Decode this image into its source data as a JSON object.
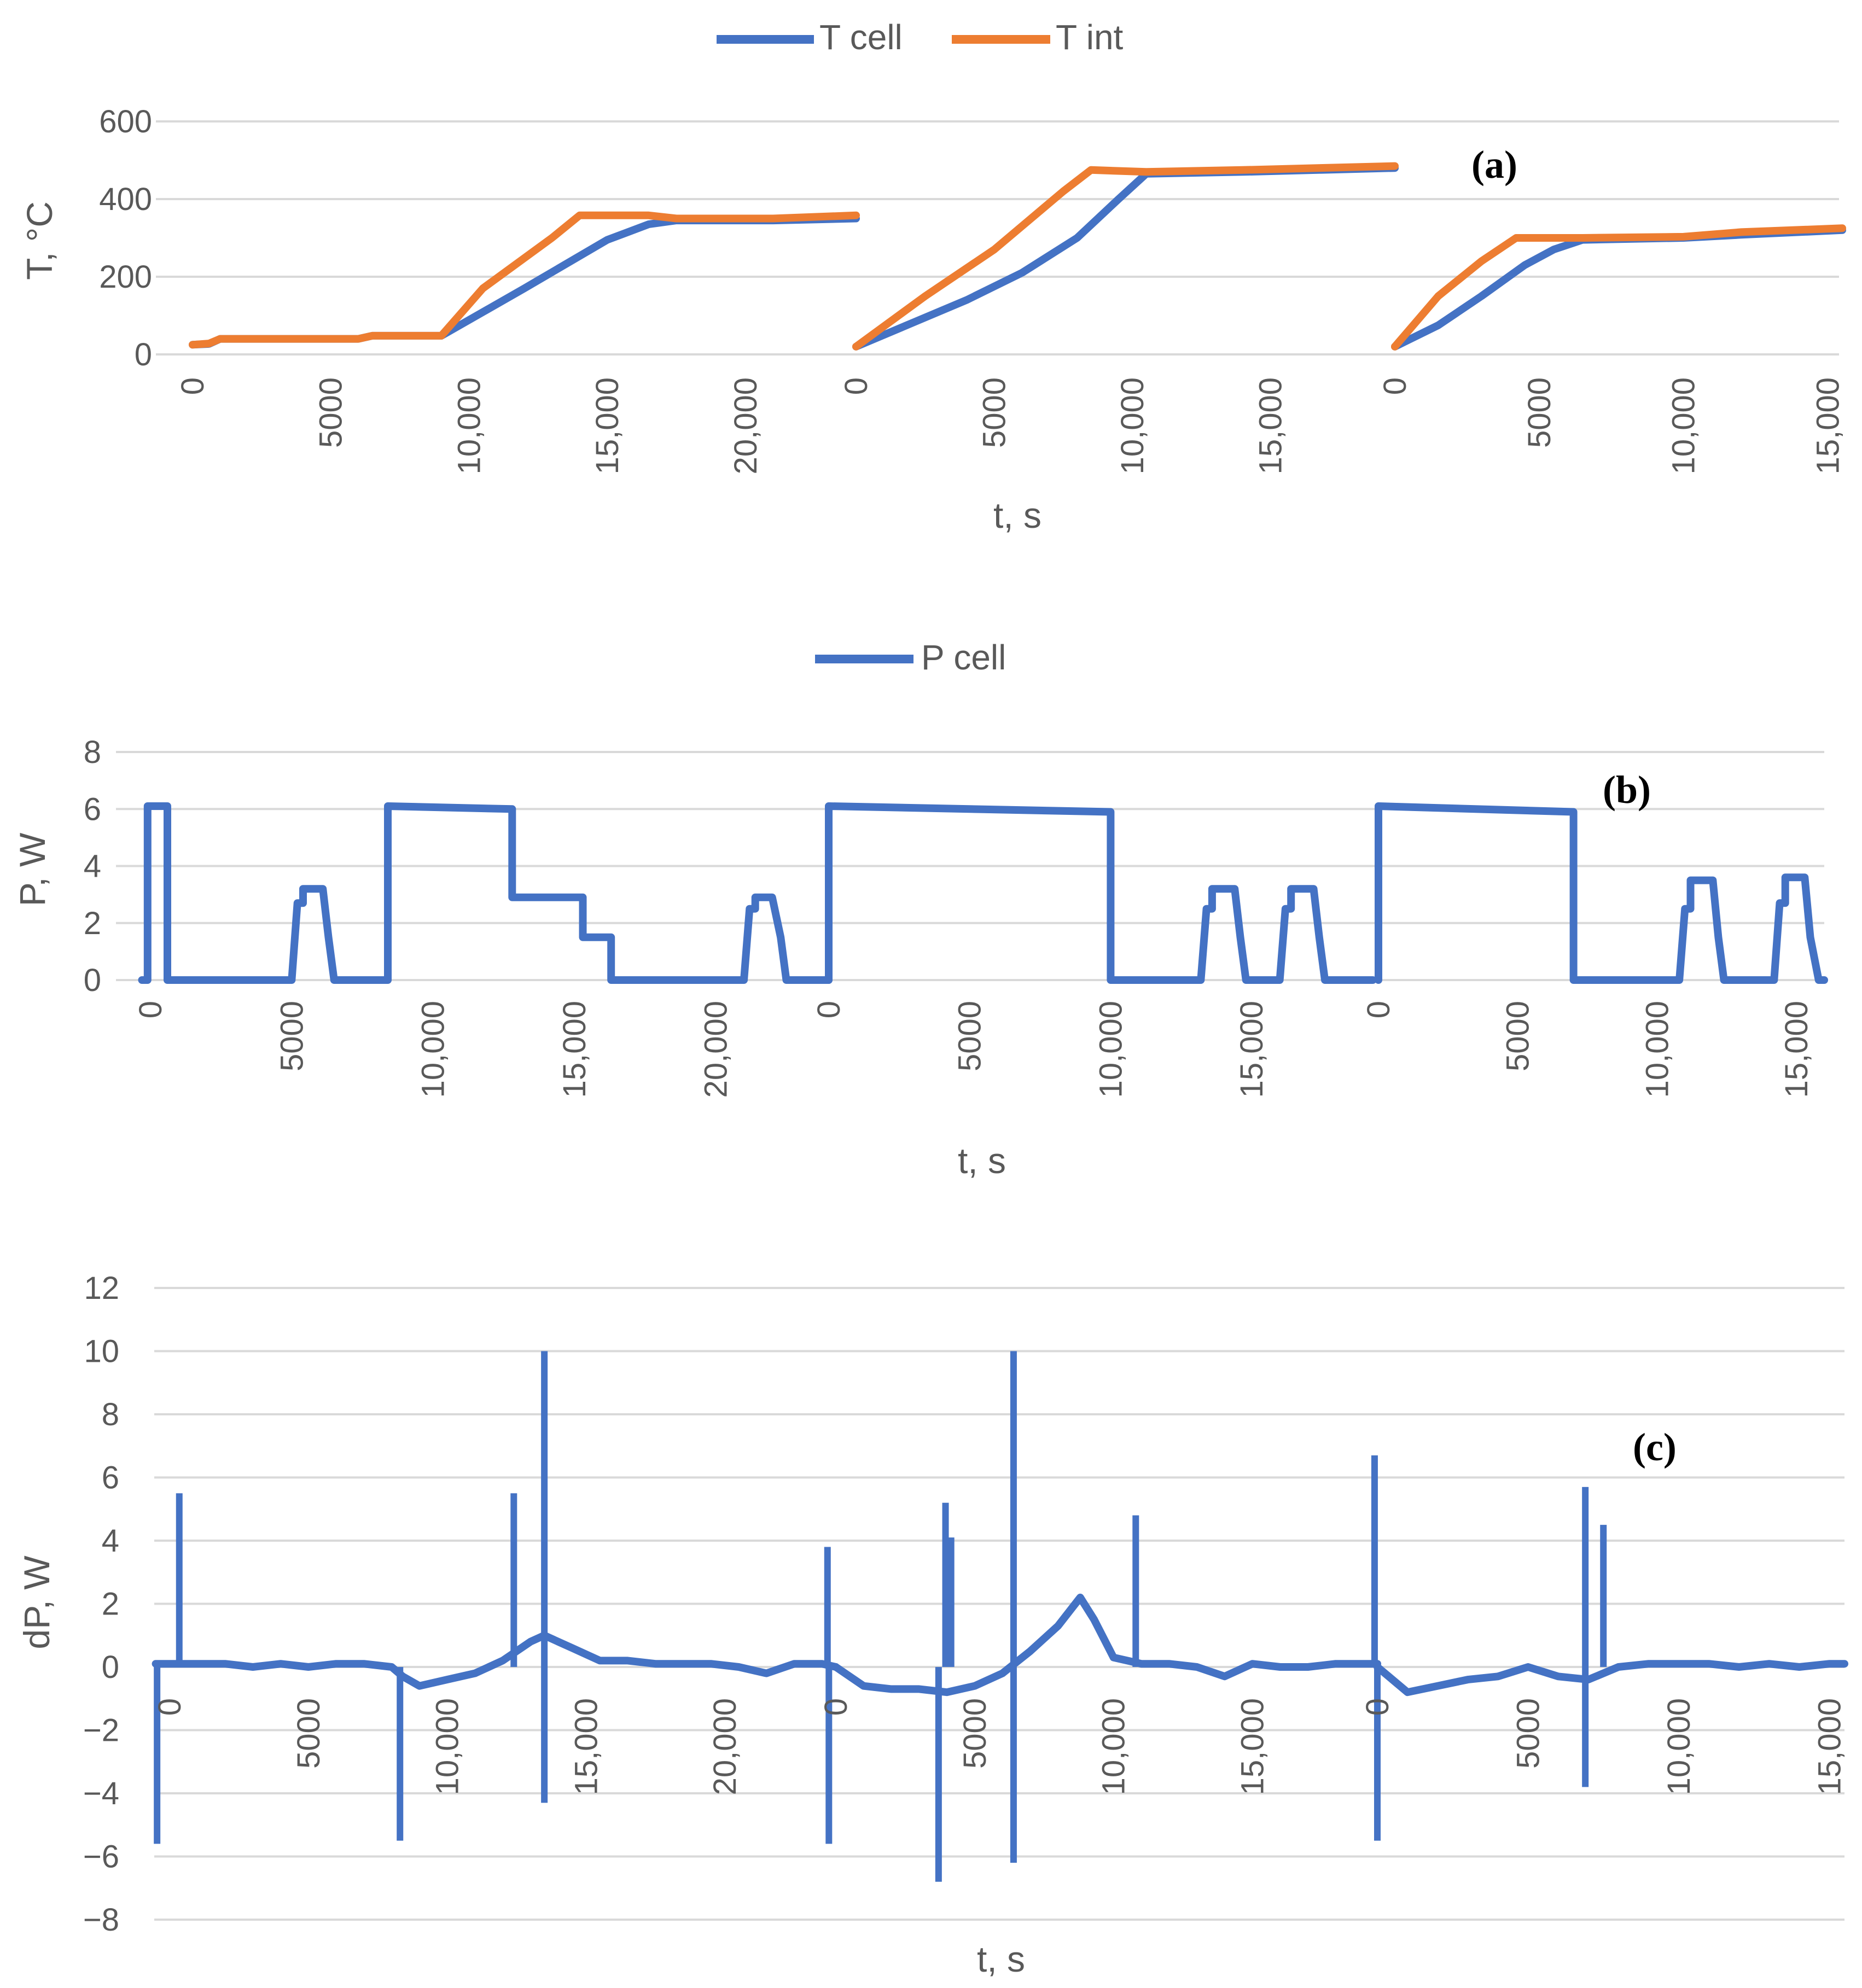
{
  "colors": {
    "t_cell": "#4472C4",
    "t_int": "#ED7D31",
    "p_cell": "#4472C4",
    "dp": "#4472C4",
    "grid": "#D9D9D9",
    "text": "#595959"
  },
  "chart_data": [
    {
      "id": "a",
      "type": "line",
      "panel_label": "(a)",
      "title": "",
      "xlabel": "t, s",
      "ylabel": "T, °C",
      "ylim": [
        0,
        600
      ],
      "yticks": [
        "0",
        "200",
        "400",
        "600"
      ],
      "segments": [
        {
          "xlim": [
            0,
            24000
          ],
          "xticks": [
            0,
            5000,
            10000,
            15000,
            20000
          ],
          "xtick_labels": [
            "0",
            "5000",
            "10,000",
            "15,000",
            "20,000"
          ]
        },
        {
          "xlim": [
            0,
            19500
          ],
          "xticks": [
            0,
            5000,
            10000,
            15000
          ],
          "xtick_labels": [
            "0",
            "5000",
            "10,000",
            "15,000"
          ]
        },
        {
          "xlim": [
            0,
            15500
          ],
          "xticks": [
            0,
            5000,
            10000,
            15000
          ],
          "xtick_labels": [
            "0",
            "5000",
            "10,000",
            "15,000"
          ]
        }
      ],
      "legend": [
        "T cell",
        "T int"
      ],
      "series": [
        {
          "name": "T cell",
          "color": "#4472C4",
          "segments": [
            {
              "x": [
                0,
                600,
                1000,
                6000,
                6500,
                9000,
                12000,
                15000,
                16500,
                17500,
                21000,
                24000
              ],
              "y": [
                25,
                27,
                40,
                40,
                48,
                48,
                170,
                295,
                335,
                345,
                345,
                350
              ]
            },
            {
              "x": [
                0,
                2000,
                4000,
                6000,
                8000,
                9500,
                10500,
                14000,
                19500
              ],
              "y": [
                20,
                80,
                140,
                210,
                300,
                400,
                465,
                470,
                480
              ]
            },
            {
              "x": [
                0,
                1500,
                3000,
                4500,
                5500,
                6500,
                10000,
                12000,
                15500
              ],
              "y": [
                20,
                75,
                150,
                230,
                270,
                295,
                300,
                308,
                320
              ]
            }
          ]
        },
        {
          "name": "T int",
          "color": "#ED7D31",
          "segments": [
            {
              "x": [
                0,
                600,
                1000,
                6000,
                6500,
                9000,
                10500,
                13000,
                14000,
                16500,
                17500,
                21000,
                24000
              ],
              "y": [
                25,
                28,
                40,
                40,
                48,
                48,
                170,
                300,
                358,
                358,
                350,
                350,
                358
              ]
            },
            {
              "x": [
                0,
                2500,
                5000,
                7500,
                8500,
                10500,
                14000,
                19500
              ],
              "y": [
                20,
                150,
                270,
                420,
                475,
                470,
                475,
                485
              ]
            },
            {
              "x": [
                0,
                1500,
                3000,
                4200,
                6500,
                10000,
                12000,
                15500
              ],
              "y": [
                20,
                150,
                240,
                300,
                300,
                303,
                315,
                325
              ]
            }
          ]
        }
      ]
    },
    {
      "id": "b",
      "type": "line",
      "panel_label": "(b)",
      "title": "",
      "xlabel": "t, s",
      "ylabel": "P, W",
      "ylim": [
        0,
        8
      ],
      "yticks": [
        "0",
        "2",
        "4",
        "6",
        "8"
      ],
      "segments": [
        {
          "xlim": [
            0,
            24000
          ],
          "xticks": [
            0,
            5000,
            10000,
            15000,
            20000
          ],
          "xtick_labels": [
            "0",
            "5000",
            "10,000",
            "15,000",
            "20,000"
          ]
        },
        {
          "xlim": [
            0,
            19500
          ],
          "xticks": [
            0,
            5000,
            10000,
            15000
          ],
          "xtick_labels": [
            "0",
            "5000",
            "10,000",
            "15,000"
          ]
        },
        {
          "xlim": [
            0,
            16000
          ],
          "xticks": [
            0,
            5000,
            10000,
            15000
          ],
          "xtick_labels": [
            "0",
            "5000",
            "10,000",
            "15,000"
          ]
        }
      ],
      "legend": [
        "P cell"
      ],
      "series": [
        {
          "name": "P cell",
          "color": "#4472C4",
          "segments": [
            {
              "x": [
                -300,
                -100,
                -100,
                600,
                600,
                5000,
                5200,
                5400,
                5400,
                6100,
                6300,
                6500,
                8400,
                8400,
                12800,
                12800,
                15300,
                15300,
                16300,
                16300,
                21000,
                21200,
                21400,
                21400,
                22000,
                22300,
                22500,
                24000
              ],
              "y": [
                0,
                0,
                6.1,
                6.1,
                0,
                0,
                2.7,
                2.7,
                3.2,
                3.2,
                1.5,
                0,
                0,
                6.1,
                6.0,
                2.9,
                2.9,
                1.5,
                1.5,
                0,
                0,
                2.5,
                2.5,
                2.9,
                2.9,
                1.5,
                0,
                0
              ]
            },
            {
              "x": [
                0,
                0,
                10000,
                10000,
                13200,
                13400,
                13600,
                13600,
                14400,
                14600,
                14800,
                16000,
                16200,
                16400,
                16400,
                17200,
                17400,
                17600,
                19300
              ],
              "y": [
                0,
                6.1,
                5.9,
                0,
                0,
                2.5,
                2.5,
                3.2,
                3.2,
                1.5,
                0,
                0,
                2.5,
                2.5,
                3.2,
                3.2,
                1.5,
                0,
                0
              ]
            },
            {
              "x": [
                0,
                0,
                7000,
                7000,
                10800,
                11000,
                11200,
                11200,
                12000,
                12200,
                12400,
                14200,
                14400,
                14600,
                14600,
                15300,
                15500,
                15800,
                16000
              ],
              "y": [
                0,
                6.1,
                5.9,
                0,
                0,
                2.5,
                2.5,
                3.5,
                3.5,
                1.5,
                0,
                0,
                2.7,
                2.7,
                3.6,
                3.6,
                1.5,
                0,
                0
              ]
            }
          ]
        }
      ]
    },
    {
      "id": "c",
      "type": "line",
      "panel_label": "(c)",
      "title": "",
      "xlabel": "t, s",
      "ylabel": "dP, W",
      "ylim": [
        -8,
        12
      ],
      "yticks": [
        "−8",
        "−6",
        "−4",
        "−2",
        "0",
        "2",
        "4",
        "6",
        "8",
        "10",
        "12"
      ],
      "segments": [
        {
          "xlim": [
            0,
            24000
          ],
          "xticks": [
            0,
            5000,
            10000,
            15000,
            20000
          ],
          "xtick_labels": [
            "0",
            "5000",
            "10,000",
            "15,000",
            "20,000"
          ]
        },
        {
          "xlim": [
            0,
            19500
          ],
          "xticks": [
            0,
            5000,
            10000,
            15000
          ],
          "xtick_labels": [
            "0",
            "5000",
            "10,000",
            "15,000"
          ]
        },
        {
          "xlim": [
            0,
            15500
          ],
          "xticks": [
            0,
            5000,
            10000,
            15000
          ],
          "xtick_labels": [
            "0",
            "5000",
            "10,000",
            "15,000"
          ]
        }
      ],
      "series": [
        {
          "name": "dP",
          "color": "#4472C4",
          "segments": [
            {
              "x": [
                -500,
                0,
                1000,
                2000,
                3000,
                4000,
                5000,
                6000,
                7000,
                8000,
                8400,
                9000,
                10000,
                11000,
                12000,
                13000,
                13500,
                14500,
                15500,
                16500,
                17500,
                18500,
                19500,
                20500,
                21500,
                22500,
                23500,
                24000
              ],
              "y": [
                0.1,
                0.1,
                0.1,
                0.1,
                0.0,
                0.1,
                0.0,
                0.1,
                0.1,
                0.0,
                -0.3,
                -0.6,
                -0.4,
                -0.2,
                0.2,
                0.8,
                1.0,
                0.6,
                0.2,
                0.2,
                0.1,
                0.1,
                0.1,
                0.0,
                -0.2,
                0.1,
                0.1,
                0.0
              ]
            },
            {
              "x": [
                0,
                1000,
                2000,
                3000,
                4000,
                5000,
                6000,
                7000,
                8000,
                8800,
                9300,
                10000,
                11000,
                12000,
                13000,
                14000,
                15000,
                16000,
                17000,
                18000,
                19000,
                19500
              ],
              "y": [
                0.0,
                -0.6,
                -0.7,
                -0.7,
                -0.8,
                -0.6,
                -0.2,
                0.5,
                1.3,
                2.2,
                1.5,
                0.3,
                0.1,
                0.1,
                0.0,
                -0.3,
                0.1,
                0.0,
                0.0,
                0.1,
                0.1,
                0.1
              ]
            },
            {
              "x": [
                0,
                1000,
                2000,
                3000,
                4000,
                5000,
                6000,
                7000,
                8000,
                9000,
                10000,
                11000,
                12000,
                13000,
                14000,
                15000,
                15500
              ],
              "y": [
                0.0,
                -0.8,
                -0.6,
                -0.4,
                -0.3,
                0.0,
                -0.3,
                -0.4,
                0.0,
                0.1,
                0.1,
                0.1,
                0.0,
                0.1,
                0.0,
                0.1,
                0.1
              ]
            }
          ],
          "spikes": [
            {
              "segment": 0,
              "x": -450,
              "y": -5.6
            },
            {
              "segment": 0,
              "x": 350,
              "y": 5.5
            },
            {
              "segment": 0,
              "x": 8300,
              "y": -5.5
            },
            {
              "segment": 0,
              "x": 12400,
              "y": 5.5
            },
            {
              "segment": 0,
              "x": 13500,
              "y": 10.0
            },
            {
              "segment": 0,
              "x": 13500,
              "y": -4.3
            },
            {
              "segment": 0,
              "x": 23700,
              "y": 3.8
            },
            {
              "segment": 0,
              "x": 23750,
              "y": -5.6
            },
            {
              "segment": 1,
              "x": 3700,
              "y": -6.8
            },
            {
              "segment": 1,
              "x": 3950,
              "y": 5.2
            },
            {
              "segment": 1,
              "x": 4150,
              "y": 4.1
            },
            {
              "segment": 1,
              "x": 6400,
              "y": 10.0
            },
            {
              "segment": 1,
              "x": 6400,
              "y": -6.2
            },
            {
              "segment": 1,
              "x": 10800,
              "y": 4.8
            },
            {
              "segment": 1,
              "x": 19400,
              "y": 6.7
            },
            {
              "segment": 2,
              "x": 0,
              "y": -5.5
            },
            {
              "segment": 2,
              "x": 6900,
              "y": 5.7
            },
            {
              "segment": 2,
              "x": 6900,
              "y": -3.8
            },
            {
              "segment": 2,
              "x": 7500,
              "y": 4.5
            }
          ]
        }
      ]
    }
  ]
}
